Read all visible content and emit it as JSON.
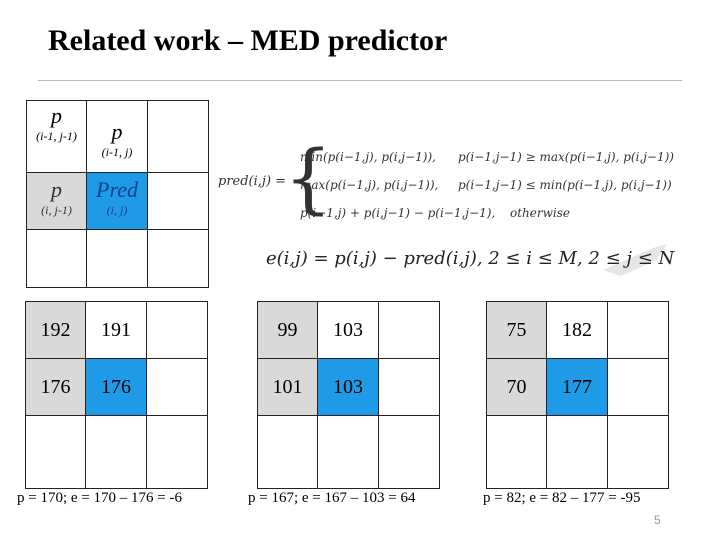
{
  "title": "Related work – MED predictor",
  "neighborhood": {
    "top_left": {
      "symbol": "p",
      "sub": "(i-1, j-1)"
    },
    "top_mid": {
      "symbol": "p",
      "sub": "(i-1, j)"
    },
    "mid_left": {
      "symbol": "p",
      "sub": "(i, j-1)"
    },
    "mid_mid": {
      "symbol": "Pred",
      "sub": "(i, j)"
    }
  },
  "formula": {
    "lhs": "pred(i,j) =",
    "cases": [
      {
        "expr": "min(p(i−1,j), p(i,j−1)),",
        "cond": "p(i−1,j−1) ≥ max(p(i−1,j), p(i,j−1))"
      },
      {
        "expr": "max(p(i−1,j), p(i,j−1)),",
        "cond": "p(i−1,j−1) ≤ min(p(i−1,j), p(i,j−1))"
      },
      {
        "expr": "p(i−1,j) + p(i,j−1) − p(i−1,j−1),",
        "cond": "otherwise"
      }
    ],
    "error": "e(i,j) = p(i,j) − pred(i,j),  2 ≤ i ≤ M,  2 ≤ j ≤ N"
  },
  "examples": [
    {
      "values": {
        "r1c1": "192",
        "r1c2": "191",
        "r2c1": "176",
        "r2c2": "176"
      },
      "caption": "p = 170; e = 170 – 176 = -6"
    },
    {
      "values": {
        "r1c1": "99",
        "r1c2": "103",
        "r2c1": "101",
        "r2c2": "103"
      },
      "caption": "p = 167; e = 167 – 103 = 64"
    },
    {
      "values": {
        "r1c1": "75",
        "r1c2": "182",
        "r2c1": "70",
        "r2c2": "177"
      },
      "caption": "p = 82; e = 82 – 177 = -95"
    }
  ],
  "page_number": "5",
  "colors": {
    "gray_cell": "#d9d9d9",
    "pred_cell": "#1f9ae6"
  }
}
